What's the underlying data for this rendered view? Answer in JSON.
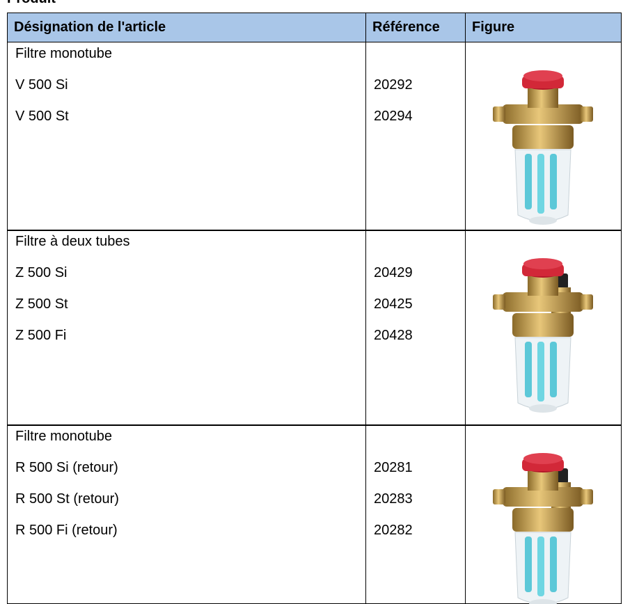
{
  "header": {
    "title": "Produit"
  },
  "table": {
    "columns": [
      "Désignation de l'article",
      "Référence",
      "Figure"
    ],
    "groups": [
      {
        "title": "Filtre monotube",
        "rows": [
          {
            "name": "V 500 Si",
            "ref": "20292"
          },
          {
            "name": "V 500 St",
            "ref": "20294"
          }
        ]
      },
      {
        "title": "Filtre à deux tubes",
        "rows": [
          {
            "name": "Z 500 Si",
            "ref": "20429"
          },
          {
            "name": "Z 500 St",
            "ref": "20425"
          },
          {
            "name": "Z 500 Fi",
            "ref": "20428"
          }
        ]
      },
      {
        "title": "Filtre monotube",
        "rows": [
          {
            "name": "R 500 Si (retour)",
            "ref": "20281"
          },
          {
            "name": "R 500 St (retour)",
            "ref": "20283"
          },
          {
            "name": "R 500 Fi (retour)",
            "ref": "20282"
          }
        ]
      }
    ]
  }
}
